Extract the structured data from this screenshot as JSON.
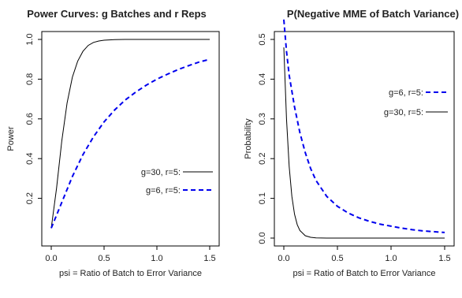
{
  "chart_data": [
    {
      "type": "line",
      "title": "Power Curves: g Batches and r Reps",
      "xlabel": "psi = Ratio of Batch to Error Variance",
      "ylabel": "Power",
      "xlim": [
        0,
        1.5
      ],
      "ylim": [
        0.0,
        1.0
      ],
      "x_ticks": [
        0.0,
        0.5,
        1.0,
        1.5
      ],
      "x_tick_labels": [
        "0.0",
        "0.5",
        "1.0",
        "1.5"
      ],
      "y_ticks": [
        0.2,
        0.4,
        0.6,
        0.8,
        1.0
      ],
      "y_tick_labels": [
        "0.2",
        "0.4",
        "0.6",
        "0.8",
        "1.0"
      ],
      "grid": false,
      "legend_position": "right",
      "series": [
        {
          "name": "g=30, r=5:",
          "color": "#000000",
          "style": "solid",
          "x": [
            0.0,
            0.05,
            0.1,
            0.15,
            0.2,
            0.25,
            0.3,
            0.35,
            0.4,
            0.45,
            0.5,
            0.6,
            0.7,
            0.8,
            1.0,
            1.2,
            1.5
          ],
          "y": [
            0.05,
            0.25,
            0.49,
            0.68,
            0.81,
            0.89,
            0.94,
            0.97,
            0.985,
            0.992,
            0.996,
            0.999,
            1.0,
            1.0,
            1.0,
            1.0,
            1.0
          ]
        },
        {
          "name": "g=6,  r=5:",
          "color": "#0000ee",
          "style": "dashed",
          "x": [
            0.0,
            0.1,
            0.2,
            0.3,
            0.4,
            0.5,
            0.6,
            0.7,
            0.8,
            0.9,
            1.0,
            1.1,
            1.2,
            1.3,
            1.4,
            1.5
          ],
          "y": [
            0.05,
            0.18,
            0.31,
            0.42,
            0.51,
            0.585,
            0.645,
            0.695,
            0.735,
            0.77,
            0.8,
            0.825,
            0.848,
            0.868,
            0.886,
            0.9
          ]
        }
      ]
    },
    {
      "type": "line",
      "title": "P(Negative MME of Batch Variance)",
      "xlabel": "psi = Ratio of Batch to Error Variance",
      "ylabel": "Probability",
      "xlim": [
        0,
        1.5
      ],
      "ylim": [
        0.0,
        0.5
      ],
      "x_ticks": [
        0.0,
        0.5,
        1.0,
        1.5
      ],
      "x_tick_labels": [
        "0.0",
        "0.5",
        "1.0",
        "1.5"
      ],
      "y_ticks": [
        0.0,
        0.1,
        0.2,
        0.3,
        0.4,
        0.5
      ],
      "y_tick_labels": [
        "0.0",
        "0.1",
        "0.2",
        "0.3",
        "0.4",
        "0.5"
      ],
      "grid": false,
      "legend_position": "top-right",
      "series": [
        {
          "name": "g=6,  r=5:",
          "color": "#0000ee",
          "style": "dashed",
          "x": [
            0.0,
            0.025,
            0.05,
            0.1,
            0.15,
            0.2,
            0.25,
            0.3,
            0.4,
            0.5,
            0.6,
            0.7,
            0.8,
            0.9,
            1.0,
            1.1,
            1.2,
            1.3,
            1.4,
            1.5
          ],
          "y": [
            0.55,
            0.47,
            0.41,
            0.33,
            0.265,
            0.215,
            0.175,
            0.145,
            0.105,
            0.08,
            0.063,
            0.051,
            0.042,
            0.035,
            0.03,
            0.025,
            0.021,
            0.018,
            0.016,
            0.014
          ]
        },
        {
          "name": "g=30, r=5:",
          "color": "#000000",
          "style": "solid",
          "x": [
            0.0,
            0.025,
            0.05,
            0.075,
            0.1,
            0.125,
            0.15,
            0.2,
            0.25,
            0.3,
            0.35,
            0.4,
            0.5,
            0.75,
            1.0,
            1.5
          ],
          "y": [
            0.48,
            0.3,
            0.18,
            0.105,
            0.06,
            0.034,
            0.019,
            0.006,
            0.002,
            0.0005,
            0.0001,
            0.0,
            0.0,
            0.0,
            0.0,
            0.0
          ]
        }
      ]
    }
  ]
}
